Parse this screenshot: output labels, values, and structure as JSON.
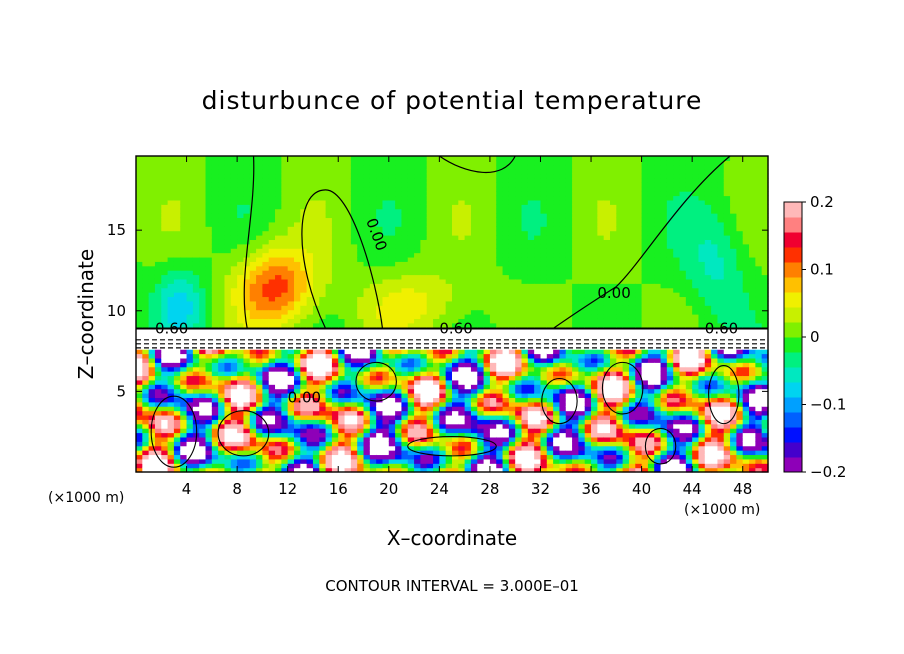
{
  "chart_data": {
    "type": "heatmap",
    "title": "disturbunce of potential temperature",
    "xlabel": "X–coordinate",
    "ylabel": "Z–coordinate",
    "x_unit_label": "(×1000 m)",
    "x_unit_label_right": "(×1000 m)",
    "note": "CONTOUR INTERVAL = 3.000E–01",
    "xlim": [
      0,
      50
    ],
    "ylim": [
      0,
      19.6
    ],
    "x_ticks": [
      4,
      8,
      12,
      16,
      20,
      24,
      28,
      32,
      36,
      40,
      44,
      48
    ],
    "x_tick_labels": [
      "4",
      "8",
      "12",
      "16",
      "20",
      "24",
      "28",
      "32",
      "36",
      "40",
      "44",
      "48"
    ],
    "y_ticks": [
      5,
      10,
      15
    ],
    "y_tick_labels": [
      "5",
      "10",
      "15"
    ],
    "colorbar": {
      "range": [
        -0.2,
        0.2
      ],
      "ticks": [
        0.2,
        0.1,
        0,
        -0.1,
        -0.2
      ],
      "tick_labels": [
        "0.2",
        "0.1",
        "0",
        "−0.1",
        "−0.2"
      ],
      "colors": [
        "#8e00b8",
        "#4400cc",
        "#0010ff",
        "#0060ff",
        "#00a0ff",
        "#00d4f0",
        "#00e8c0",
        "#00f080",
        "#18f020",
        "#80f000",
        "#c8f000",
        "#f0f000",
        "#ffc000",
        "#ff8000",
        "#ff3000",
        "#f00030",
        "#ff8080",
        "#ffb8b8"
      ]
    },
    "contour_labels": [
      "0.60",
      "0.00",
      "0.00",
      "0.60",
      "0.60",
      "0.00"
    ],
    "grid": false,
    "legend": "colorbar right"
  }
}
